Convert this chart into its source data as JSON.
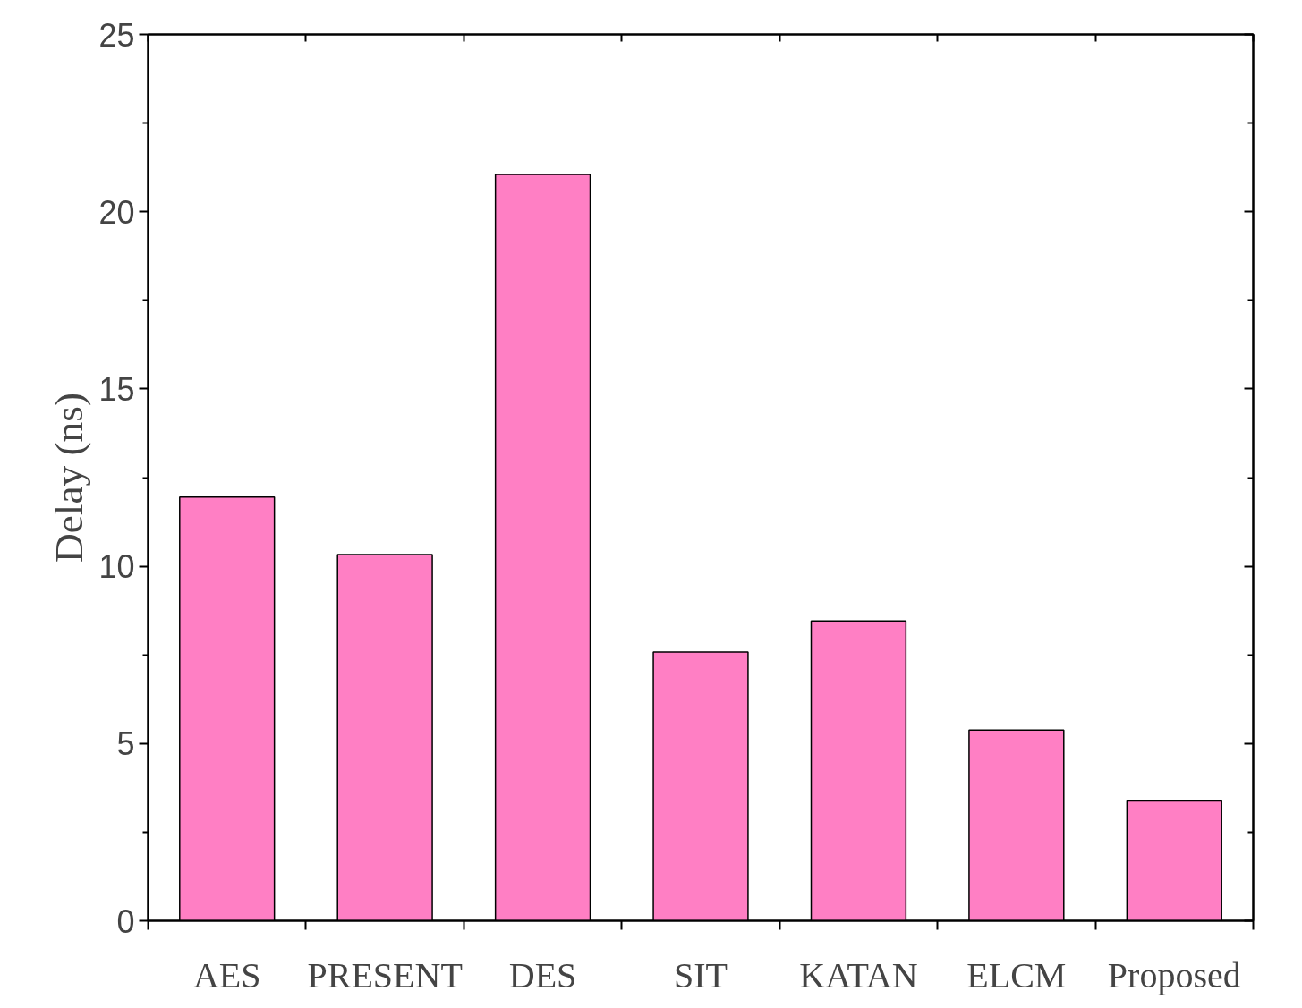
{
  "chart_data": {
    "type": "bar",
    "ylabel": "Delay (ns)",
    "categories": [
      "AES",
      "PRESENT",
      "DES",
      "SIT",
      "KATAN",
      "ELCM",
      "Proposed"
    ],
    "values": [
      11.95,
      10.33,
      21.05,
      7.58,
      8.46,
      5.38,
      3.38
    ],
    "color": "#ff7fc4",
    "ylim": [
      0,
      25
    ],
    "yticks": [
      0,
      5,
      10,
      15,
      20,
      25
    ],
    "grid": false
  }
}
